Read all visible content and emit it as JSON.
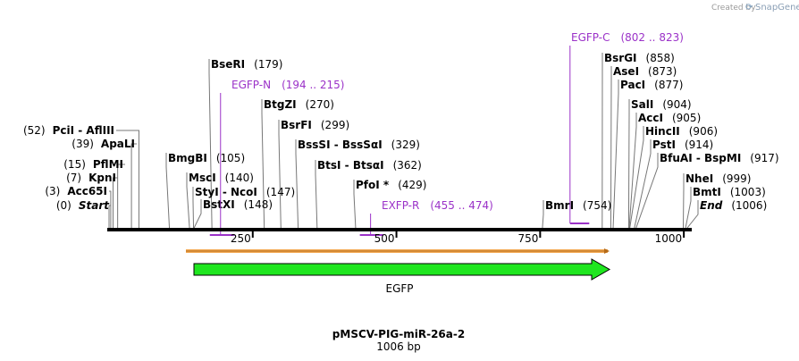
{
  "credit": {
    "created_by": "Created by",
    "brand": "SnapGene"
  },
  "plasmid": {
    "name": "pMSCV-PIG-miR-26a-2",
    "length_text": "1006 bp",
    "length": 1006
  },
  "ruler": {
    "ticks": [
      250,
      500,
      750,
      1000
    ]
  },
  "sites": [
    {
      "name": "Start",
      "pos": "(0)",
      "site": 0,
      "style": "italic",
      "side": "left"
    },
    {
      "name": "Acc65I",
      "pos": "(3)",
      "site": 3,
      "side": "left"
    },
    {
      "name": "KpnI",
      "pos": "(7)",
      "site": 7,
      "side": "left"
    },
    {
      "name": "PflMI",
      "pos": "(15)",
      "site": 15,
      "side": "left"
    },
    {
      "name": "ApaLI",
      "pos": "(39)",
      "site": 39,
      "side": "left"
    },
    {
      "name": "PciI",
      "name2": "AflIII",
      "pos": "(52)",
      "site": 52,
      "side": "left"
    },
    {
      "name": "BmgBI",
      "pos": "(105)",
      "site": 105,
      "side": "right"
    },
    {
      "name": "BseRI",
      "pos": "(179)",
      "site": 179,
      "side": "right"
    },
    {
      "name": "MscI",
      "pos": "(140)",
      "site": 140,
      "side": "right"
    },
    {
      "name": "StyI",
      "name2": "NcoI",
      "pos": "(147)",
      "site": 147,
      "side": "right"
    },
    {
      "name": "BstXI",
      "pos": "(148)",
      "site": 148,
      "side": "right"
    },
    {
      "name": "BtgZI",
      "pos": "(270)",
      "site": 270,
      "side": "right"
    },
    {
      "name": "BsrFI",
      "pos": "(299)",
      "site": 299,
      "side": "right"
    },
    {
      "name": "BssSI",
      "name2": "BssSαI",
      "pos": "(329)",
      "site": 329,
      "side": "right"
    },
    {
      "name": "BtsI",
      "name2": "BtsαI",
      "pos": "(362)",
      "site": 362,
      "side": "right"
    },
    {
      "name": "PfoI *",
      "pos": "(429)",
      "site": 429,
      "side": "right"
    },
    {
      "name": "BmrI",
      "pos": "(754)",
      "site": 754,
      "side": "right"
    },
    {
      "name": "BsrGI",
      "pos": "(858)",
      "site": 858,
      "side": "right"
    },
    {
      "name": "AseI",
      "pos": "(873)",
      "site": 873,
      "side": "right"
    },
    {
      "name": "PacI",
      "pos": "(877)",
      "site": 877,
      "side": "right"
    },
    {
      "name": "SalI",
      "pos": "(904)",
      "site": 904,
      "side": "right"
    },
    {
      "name": "AccI",
      "pos": "(905)",
      "site": 905,
      "side": "right"
    },
    {
      "name": "HincII",
      "pos": "(906)",
      "site": 906,
      "side": "right"
    },
    {
      "name": "PstI",
      "pos": "(914)",
      "site": 914,
      "side": "right"
    },
    {
      "name": "BfuAI",
      "name2": "BspMI",
      "pos": "(917)",
      "site": 917,
      "side": "right"
    },
    {
      "name": "NheI",
      "pos": "(999)",
      "site": 999,
      "side": "right"
    },
    {
      "name": "BmtI",
      "pos": "(1003)",
      "site": 1003,
      "side": "right"
    },
    {
      "name": "End",
      "pos": "(1006)",
      "site": 1006,
      "style": "italic",
      "side": "right"
    }
  ],
  "primers": [
    {
      "name": "EGFP-N",
      "range": "(194 .. 215)",
      "start": 194,
      "end": 215
    },
    {
      "name": "EXFP-R",
      "range": "(455 .. 474)",
      "start": 455,
      "end": 474
    },
    {
      "name": "EGFP-C",
      "range": "(802 .. 823)",
      "start": 802,
      "end": 823
    }
  ],
  "features": [
    {
      "name": "EGFP",
      "start": 97,
      "end": 816,
      "color": "#1fe61f",
      "direction": "forward"
    }
  ],
  "colors": {
    "primer": "#9b32c8",
    "backbone": "#000000",
    "orf": "#f2a040"
  }
}
